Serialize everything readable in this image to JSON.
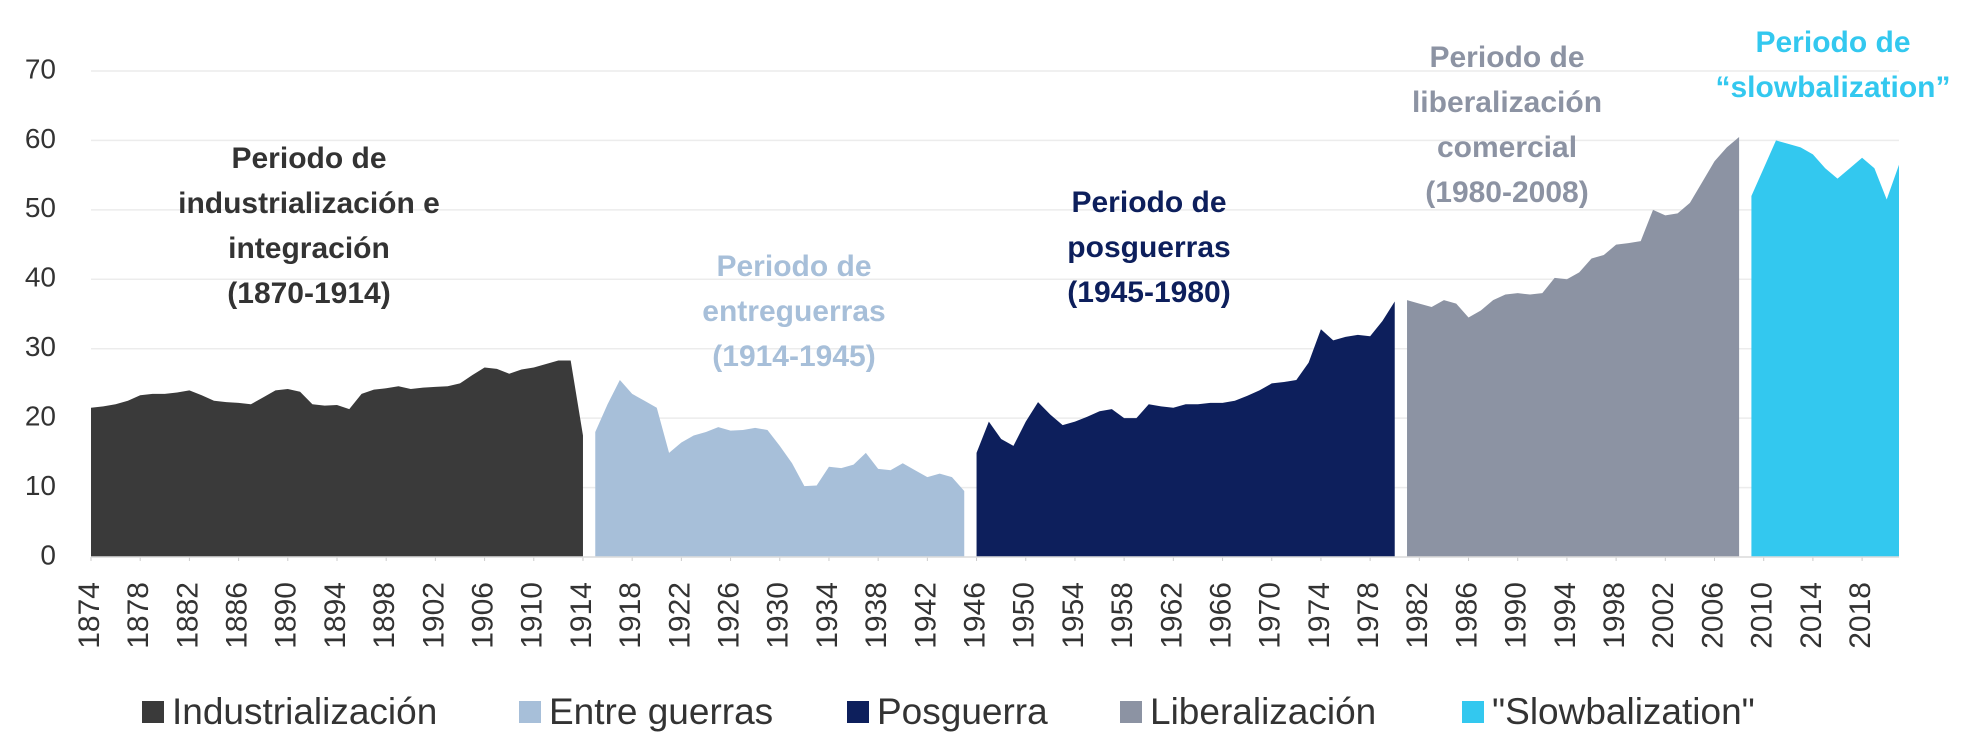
{
  "chart_data": {
    "type": "area",
    "xlim": [
      1874,
      2021
    ],
    "ylim": [
      0,
      70
    ],
    "yticks": [
      0,
      10,
      20,
      30,
      40,
      50,
      60,
      70
    ],
    "xticks": [
      1874,
      1878,
      1882,
      1886,
      1890,
      1894,
      1898,
      1902,
      1906,
      1910,
      1914,
      1918,
      1922,
      1926,
      1930,
      1934,
      1938,
      1942,
      1946,
      1950,
      1954,
      1958,
      1962,
      1966,
      1970,
      1974,
      1978,
      1982,
      1986,
      1990,
      1994,
      1998,
      2002,
      2006,
      2010,
      2014,
      2018
    ],
    "grid": true,
    "legend": "bottom",
    "series": [
      {
        "name": "Industrialización",
        "color": "#3a3a3a",
        "x": [
          1874,
          1875,
          1876,
          1877,
          1878,
          1879,
          1880,
          1881,
          1882,
          1883,
          1884,
          1885,
          1886,
          1887,
          1888,
          1889,
          1890,
          1891,
          1892,
          1893,
          1894,
          1895,
          1896,
          1897,
          1898,
          1899,
          1900,
          1901,
          1902,
          1903,
          1904,
          1905,
          1906,
          1907,
          1908,
          1909,
          1910,
          1911,
          1912,
          1913,
          1914
        ],
        "values": [
          21.5,
          21.7,
          22,
          22.5,
          23.3,
          23.5,
          23.5,
          23.7,
          24,
          23.3,
          22.5,
          22.3,
          22.2,
          22,
          23,
          24,
          24.2,
          23.8,
          22,
          21.8,
          21.9,
          21.3,
          23.5,
          24.1,
          24.3,
          24.6,
          24.2,
          24.4,
          24.5,
          24.6,
          25,
          26.2,
          27.3,
          27.1,
          26.4,
          27,
          27.3,
          27.8,
          28.3,
          28.3,
          17.5
        ]
      },
      {
        "name": "Entre guerras",
        "color": "#a7bfd9",
        "x": [
          1915,
          1916,
          1917,
          1918,
          1919,
          1920,
          1921,
          1922,
          1923,
          1924,
          1925,
          1926,
          1927,
          1928,
          1929,
          1930,
          1931,
          1932,
          1933,
          1934,
          1935,
          1936,
          1937,
          1938,
          1939,
          1940,
          1941,
          1942,
          1943,
          1944,
          1945
        ],
        "values": [
          18,
          22,
          25.5,
          23.5,
          22.5,
          21.5,
          15,
          16.5,
          17.5,
          18,
          18.7,
          18.2,
          18.3,
          18.6,
          18.3,
          16,
          13.5,
          10.2,
          10.3,
          13,
          12.8,
          13.3,
          15,
          12.7,
          12.5,
          13.5,
          12.5,
          11.5,
          12,
          11.5,
          9.5
        ]
      },
      {
        "name": "Posguerra",
        "color": "#0d1f5c",
        "x": [
          1946,
          1947,
          1948,
          1949,
          1950,
          1951,
          1952,
          1953,
          1954,
          1955,
          1956,
          1957,
          1958,
          1959,
          1960,
          1961,
          1962,
          1963,
          1964,
          1965,
          1966,
          1967,
          1968,
          1969,
          1970,
          1971,
          1972,
          1973,
          1974,
          1975,
          1976,
          1977,
          1978,
          1979,
          1980
        ],
        "values": [
          15,
          19.5,
          17,
          16,
          19.5,
          22.3,
          20.5,
          19,
          19.5,
          20.2,
          21,
          21.3,
          20,
          20,
          22,
          21.7,
          21.5,
          22,
          22,
          22.2,
          22.2,
          22.5,
          23.2,
          24,
          25,
          25.2,
          25.5,
          28,
          32.8,
          31.2,
          31.7,
          32,
          31.8,
          34,
          36.8
        ]
      },
      {
        "name": "Liberalización",
        "color": "#8c93a3",
        "x": [
          1981,
          1982,
          1983,
          1984,
          1985,
          1986,
          1987,
          1988,
          1989,
          1990,
          1991,
          1992,
          1993,
          1994,
          1995,
          1996,
          1997,
          1998,
          1999,
          2000,
          2001,
          2002,
          2003,
          2004,
          2005,
          2006,
          2007,
          2008
        ],
        "values": [
          37,
          36.5,
          36,
          37,
          36.5,
          34.5,
          35.5,
          37,
          37.8,
          38,
          37.8,
          38,
          40.2,
          40,
          41,
          43,
          43.5,
          45,
          45.2,
          45.5,
          50,
          49.2,
          49.5,
          51,
          54,
          57,
          59,
          60.5
        ]
      },
      {
        "name": "\"Slowbalization\"",
        "color": "#33c8ef",
        "x": [
          2009,
          2010,
          2011,
          2012,
          2013,
          2014,
          2015,
          2016,
          2017,
          2018,
          2019,
          2020,
          2021
        ],
        "values": [
          52,
          56,
          60,
          59.5,
          59,
          58,
          56,
          54.5,
          56,
          57.5,
          56,
          51.5,
          56.5
        ]
      }
    ],
    "annotations": [
      {
        "lines": [
          "Periodo de",
          "industrialización e",
          "integración",
          "(1870-1914)"
        ],
        "color": "#333333"
      },
      {
        "lines": [
          "Periodo de",
          "entreguerras",
          "(1914-1945)"
        ],
        "color": "#a7bfd9"
      },
      {
        "lines": [
          "Periodo de",
          "posguerras",
          "(1945-1980)"
        ],
        "color": "#0d1f5c"
      },
      {
        "lines": [
          "Periodo de",
          "liberalización",
          "comercial",
          "(1980-2008)"
        ],
        "color": "#8c93a3"
      },
      {
        "lines": [
          "Periodo de",
          "“slowbalization”"
        ],
        "color": "#33c8ef"
      }
    ]
  }
}
